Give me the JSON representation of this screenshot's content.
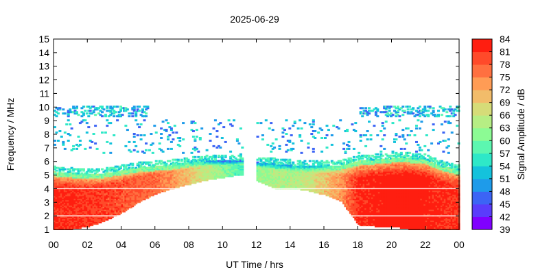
{
  "chart_data": {
    "type": "heatmap",
    "title": "2025-06-29",
    "xlabel": "UT Time / hrs",
    "ylabel": "Frequency / MHz",
    "colorbar_label": "Signal Amplitude / dB",
    "xlim": [
      0,
      24
    ],
    "ylim": [
      1,
      15
    ],
    "x_ticks": [
      "00",
      "02",
      "04",
      "06",
      "08",
      "10",
      "12",
      "14",
      "16",
      "18",
      "20",
      "22",
      "00"
    ],
    "y_ticks": [
      "1",
      "2",
      "3",
      "4",
      "5",
      "6",
      "7",
      "8",
      "9",
      "10",
      "11",
      "12",
      "13",
      "14",
      "15"
    ],
    "colorbar_ticks": [
      "39",
      "42",
      "45",
      "48",
      "51",
      "54",
      "57",
      "60",
      "63",
      "66",
      "69",
      "72",
      "75",
      "78",
      "81",
      "84"
    ],
    "colorbar_colors": [
      "#8000ff",
      "#5a3cfb",
      "#3c64f5",
      "#1e9bea",
      "#14c2dc",
      "#2ee8c8",
      "#5cf7b0",
      "#8cfb94",
      "#b6ee84",
      "#d6dc78",
      "#f2bc6a",
      "#ff9c55",
      "#ff7040",
      "#ff4a2a",
      "#ff1e10"
    ],
    "zrange": [
      39,
      84
    ],
    "grid": false,
    "profile": {
      "hours": [
        0,
        1,
        2,
        3,
        4,
        5,
        6,
        7,
        8,
        9,
        10,
        11,
        12,
        13,
        14,
        15,
        16,
        17,
        18,
        19,
        20,
        21,
        22,
        23,
        24
      ],
      "upper_freq_mhz": [
        5.2,
        5.1,
        5.0,
        5.1,
        5.3,
        5.5,
        5.6,
        5.7,
        5.9,
        6.0,
        6.0,
        6.1,
        5.9,
        5.8,
        5.7,
        5.6,
        5.6,
        5.7,
        6.0,
        6.1,
        6.2,
        6.2,
        6.1,
        5.6,
        5.3
      ],
      "lower_freq_mhz": [
        1.0,
        1.0,
        1.2,
        1.6,
        2.2,
        3.0,
        3.6,
        4.0,
        4.3,
        4.6,
        4.8,
        5.0,
        4.5,
        4.0,
        4.0,
        3.8,
        3.5,
        3.0,
        1.3,
        1.2,
        1.2,
        1.0,
        1.0,
        1.0,
        1.0
      ],
      "peak_amplitude_db": [
        82,
        82,
        81,
        80,
        79,
        78,
        77,
        74,
        70,
        65,
        62,
        58,
        62,
        64,
        64,
        66,
        70,
        74,
        82,
        83,
        84,
        84,
        83,
        82,
        81
      ]
    },
    "gap_hours": [
      11.1,
      11.9
    ],
    "ionosonde_band_mhz": [
      9.2,
      10.0
    ],
    "ionosonde_band_hours": [
      [
        0,
        5.5
      ],
      [
        18,
        24
      ]
    ],
    "scatter_band_mhz": [
      6.5,
      9.0
    ],
    "horizontal_lines_mhz": [
      2.0,
      4.0
    ]
  }
}
